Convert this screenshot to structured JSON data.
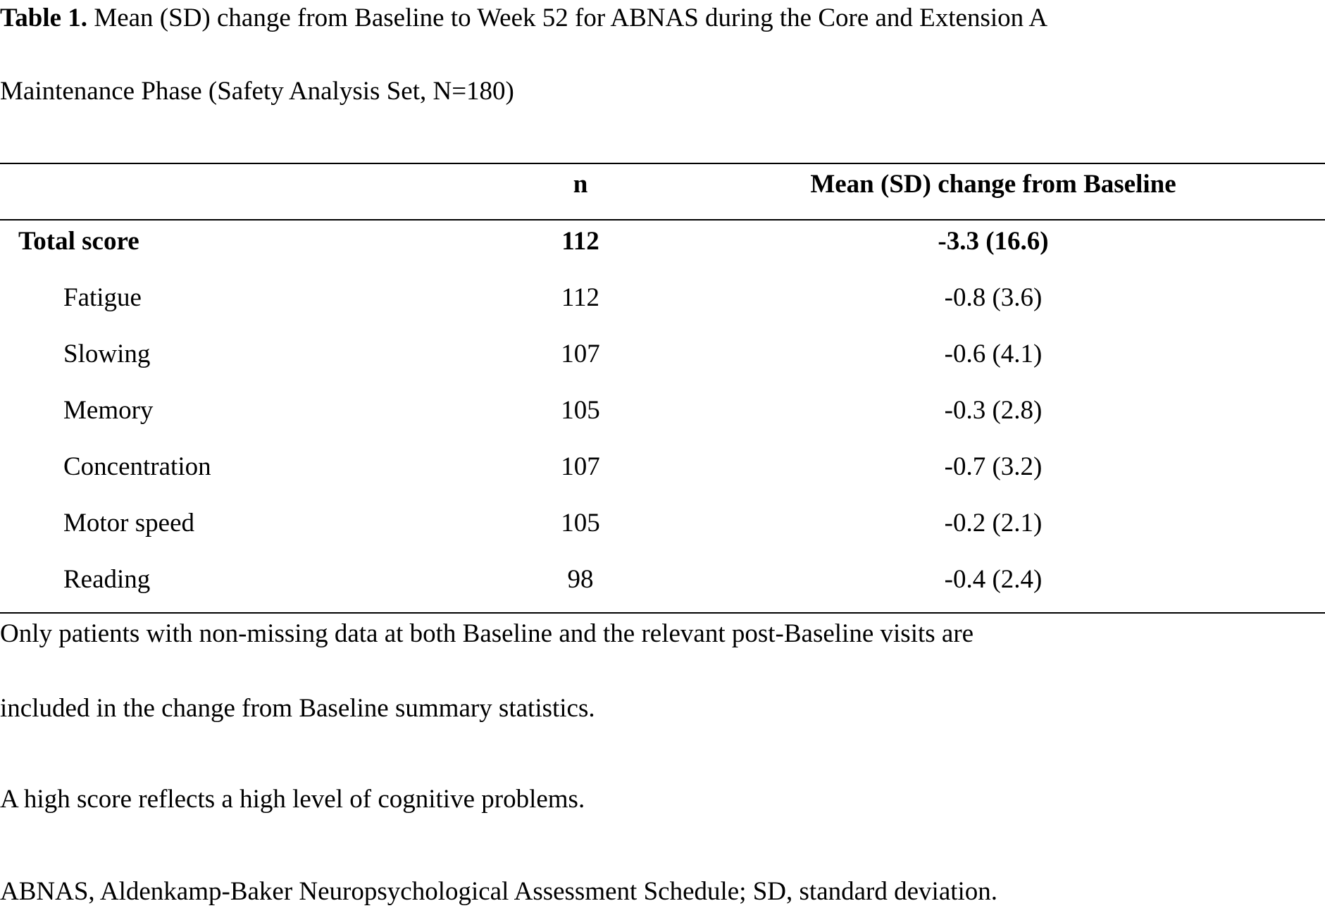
{
  "caption": {
    "label": "Table 1.",
    "text_line1": " Mean (SD) change from Baseline to Week 52 for ABNAS during the Core and Extension A",
    "text_line2": "Maintenance Phase (Safety Analysis Set, N=180)"
  },
  "table": {
    "headers": [
      "",
      "n",
      "Mean (SD) change from Baseline"
    ],
    "rows": [
      {
        "label": "Total score",
        "n": "112",
        "mean_sd": "-3.3 (16.6)",
        "bold": true
      },
      {
        "label": "Fatigue",
        "n": "112",
        "mean_sd": "-0.8 (3.6)"
      },
      {
        "label": "Slowing",
        "n": "107",
        "mean_sd": "-0.6 (4.1)"
      },
      {
        "label": "Memory",
        "n": "105",
        "mean_sd": "-0.3 (2.8)"
      },
      {
        "label": "Concentration",
        "n": "107",
        "mean_sd": "-0.7 (3.2)"
      },
      {
        "label": "Motor speed",
        "n": "105",
        "mean_sd": "-0.2 (2.1)"
      },
      {
        "label": "Reading",
        "n": "98",
        "mean_sd": "-0.4 (2.4)"
      }
    ]
  },
  "footnotes": {
    "note1_line1": "Only patients with non-missing data at both Baseline and the relevant post-Baseline visits are",
    "note1_line2": "included in the change from Baseline summary statistics.",
    "note2": "A high score reflects a high level of cognitive problems.",
    "note3": "ABNAS, Aldenkamp-Baker Neuropsychological Assessment Schedule; SD, standard deviation."
  }
}
